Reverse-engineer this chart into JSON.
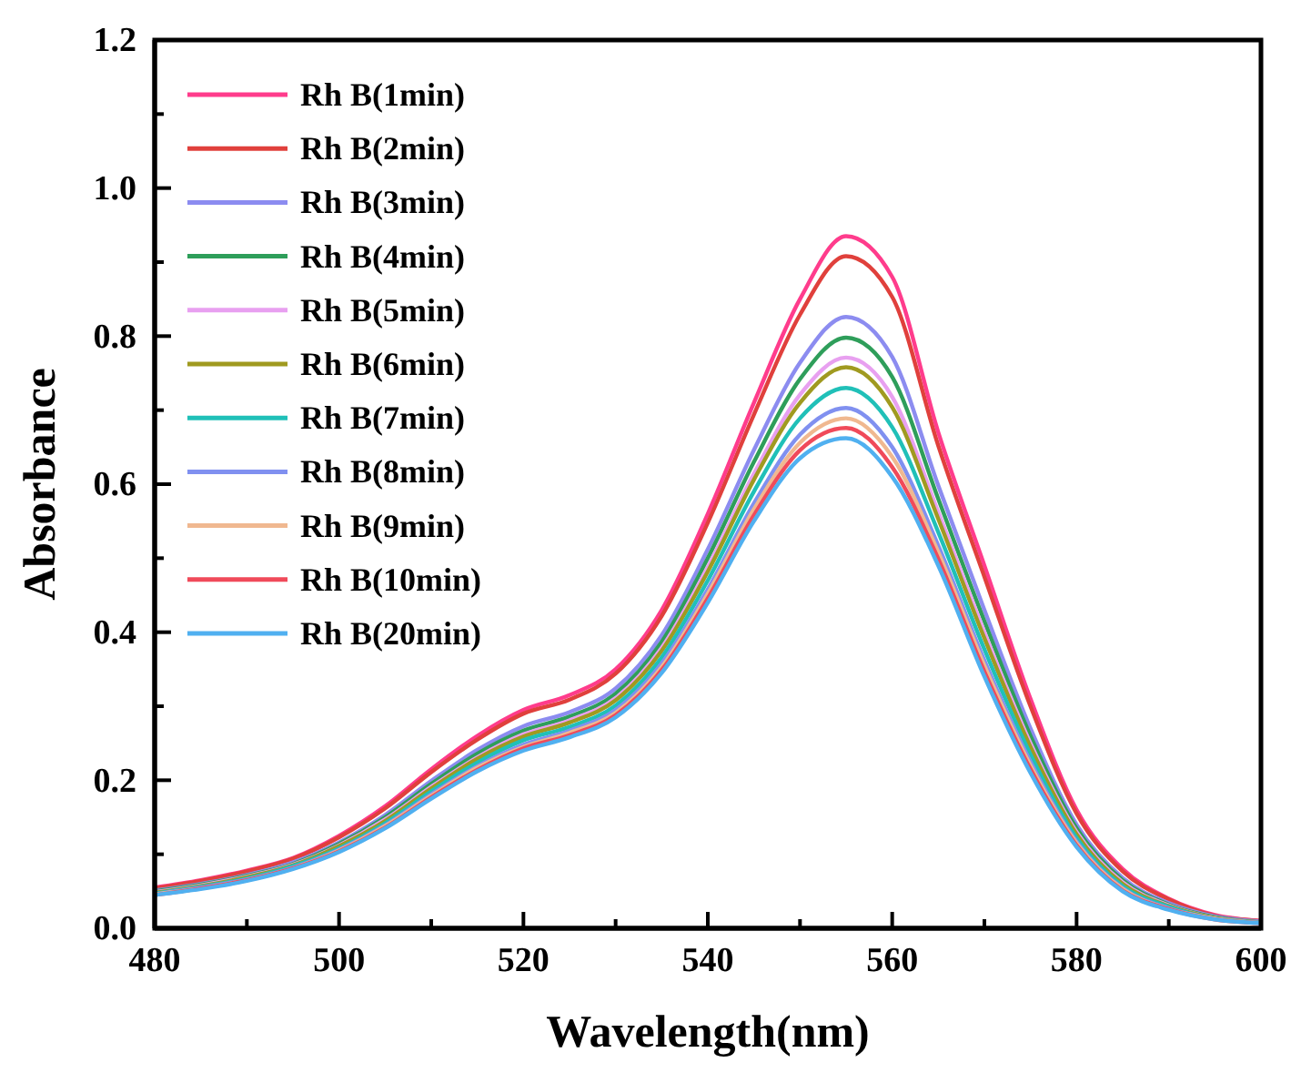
{
  "chart_data": {
    "type": "line",
    "xlabel": "Wavelength(nm)",
    "ylabel": "Absorbance",
    "xlim": [
      480,
      600
    ],
    "xticks": [
      480,
      {
        "value": 490,
        "label": null
      },
      500,
      {
        "value": 510,
        "label": null
      },
      520,
      {
        "value": 530,
        "label": null
      },
      540,
      {
        "value": 550,
        "label": null
      },
      560,
      {
        "value": 570,
        "label": null
      },
      580,
      {
        "value": 590,
        "label": null
      },
      600
    ],
    "ylim": [
      0,
      1.2
    ],
    "yticks": [
      {
        "value": 0,
        "label": "0.0"
      },
      {
        "value": 0.1,
        "label": null
      },
      {
        "value": 0.2,
        "label": "0.2"
      },
      {
        "value": 0.3,
        "label": null
      },
      {
        "value": 0.4,
        "label": "0.4"
      },
      {
        "value": 0.5,
        "label": null
      },
      {
        "value": 0.6,
        "label": "0.6"
      },
      {
        "value": 0.7,
        "label": null
      },
      {
        "value": 0.8,
        "label": "0.8"
      },
      {
        "value": 0.9,
        "label": null
      },
      {
        "value": 1.0,
        "label": "1.0"
      },
      {
        "value": 1.1,
        "label": null
      },
      {
        "value": 1.2,
        "label": "1.2"
      }
    ],
    "grid": false,
    "legend": "top left",
    "marker": "none",
    "line_style": "solid",
    "x": [
      480,
      485,
      490,
      495,
      500,
      505,
      510,
      515,
      520,
      525,
      530,
      535,
      540,
      545,
      550,
      555,
      560,
      565,
      570,
      575,
      580,
      585,
      590,
      595,
      600
    ],
    "series": [
      {
        "name": "Rh B(1min)",
        "color": "#ff3c8c",
        "values": [
          0.055,
          0.065,
          0.078,
          0.095,
          0.125,
          0.165,
          0.215,
          0.26,
          0.295,
          0.315,
          0.35,
          0.43,
          0.56,
          0.71,
          0.85,
          0.935,
          0.88,
          0.67,
          0.49,
          0.31,
          0.16,
          0.08,
          0.04,
          0.018,
          0.01
        ]
      },
      {
        "name": "Rh B(2min)",
        "color": "#e0403c",
        "values": [
          0.054,
          0.064,
          0.077,
          0.094,
          0.123,
          0.162,
          0.211,
          0.255,
          0.29,
          0.309,
          0.344,
          0.422,
          0.548,
          0.694,
          0.829,
          0.908,
          0.853,
          0.652,
          0.475,
          0.3,
          0.155,
          0.077,
          0.039,
          0.017,
          0.01
        ]
      },
      {
        "name": "Rh B(3min)",
        "color": "#8c8cf0",
        "values": [
          0.051,
          0.06,
          0.072,
          0.089,
          0.116,
          0.153,
          0.199,
          0.241,
          0.273,
          0.292,
          0.324,
          0.396,
          0.512,
          0.646,
          0.764,
          0.826,
          0.772,
          0.598,
          0.43,
          0.27,
          0.14,
          0.068,
          0.034,
          0.016,
          0.009
        ]
      },
      {
        "name": "Rh B(4min)",
        "color": "#2e9e5a",
        "values": [
          0.05,
          0.059,
          0.071,
          0.087,
          0.114,
          0.15,
          0.195,
          0.236,
          0.267,
          0.286,
          0.317,
          0.387,
          0.5,
          0.63,
          0.742,
          0.798,
          0.745,
          0.58,
          0.415,
          0.26,
          0.135,
          0.065,
          0.032,
          0.015,
          0.008
        ]
      },
      {
        "name": "Rh B(5min)",
        "color": "#e8a0f0",
        "values": [
          0.049,
          0.058,
          0.07,
          0.086,
          0.112,
          0.147,
          0.191,
          0.231,
          0.262,
          0.281,
          0.311,
          0.379,
          0.488,
          0.614,
          0.721,
          0.771,
          0.718,
          0.562,
          0.4,
          0.25,
          0.13,
          0.062,
          0.031,
          0.014,
          0.008
        ]
      },
      {
        "name": "Rh B(6min)",
        "color": "#a09a20",
        "values": [
          0.048,
          0.057,
          0.069,
          0.085,
          0.111,
          0.145,
          0.189,
          0.229,
          0.259,
          0.278,
          0.308,
          0.375,
          0.482,
          0.606,
          0.71,
          0.758,
          0.704,
          0.553,
          0.392,
          0.245,
          0.127,
          0.06,
          0.03,
          0.014,
          0.008
        ]
      },
      {
        "name": "Rh B(7min)",
        "color": "#20c0b8",
        "values": [
          0.047,
          0.056,
          0.067,
          0.084,
          0.108,
          0.142,
          0.185,
          0.224,
          0.254,
          0.272,
          0.301,
          0.366,
          0.47,
          0.59,
          0.689,
          0.73,
          0.677,
          0.535,
          0.377,
          0.235,
          0.122,
          0.057,
          0.029,
          0.013,
          0.008
        ]
      },
      {
        "name": "Rh B(8min)",
        "color": "#8090f0",
        "values": [
          0.046,
          0.055,
          0.066,
          0.082,
          0.106,
          0.139,
          0.181,
          0.219,
          0.248,
          0.267,
          0.295,
          0.358,
          0.458,
          0.574,
          0.667,
          0.703,
          0.65,
          0.517,
          0.362,
          0.225,
          0.117,
          0.054,
          0.027,
          0.013,
          0.007
        ]
      },
      {
        "name": "Rh B(9min)",
        "color": "#f0b890",
        "values": [
          0.046,
          0.054,
          0.065,
          0.081,
          0.105,
          0.138,
          0.179,
          0.217,
          0.245,
          0.264,
          0.291,
          0.353,
          0.452,
          0.566,
          0.656,
          0.689,
          0.637,
          0.508,
          0.355,
          0.22,
          0.115,
          0.053,
          0.026,
          0.013,
          0.007
        ]
      },
      {
        "name": "Rh B(10min)",
        "color": "#f04a5a",
        "values": [
          0.045,
          0.054,
          0.065,
          0.081,
          0.104,
          0.136,
          0.177,
          0.214,
          0.243,
          0.261,
          0.288,
          0.349,
          0.446,
          0.558,
          0.646,
          0.676,
          0.623,
          0.499,
          0.347,
          0.215,
          0.112,
          0.051,
          0.026,
          0.012,
          0.007
        ]
      },
      {
        "name": "Rh B(20min)",
        "color": "#50b0f0",
        "values": [
          0.045,
          0.053,
          0.064,
          0.08,
          0.103,
          0.135,
          0.175,
          0.212,
          0.24,
          0.258,
          0.285,
          0.345,
          0.44,
          0.55,
          0.635,
          0.662,
          0.61,
          0.49,
          0.34,
          0.21,
          0.11,
          0.05,
          0.025,
          0.012,
          0.007
        ]
      }
    ]
  }
}
